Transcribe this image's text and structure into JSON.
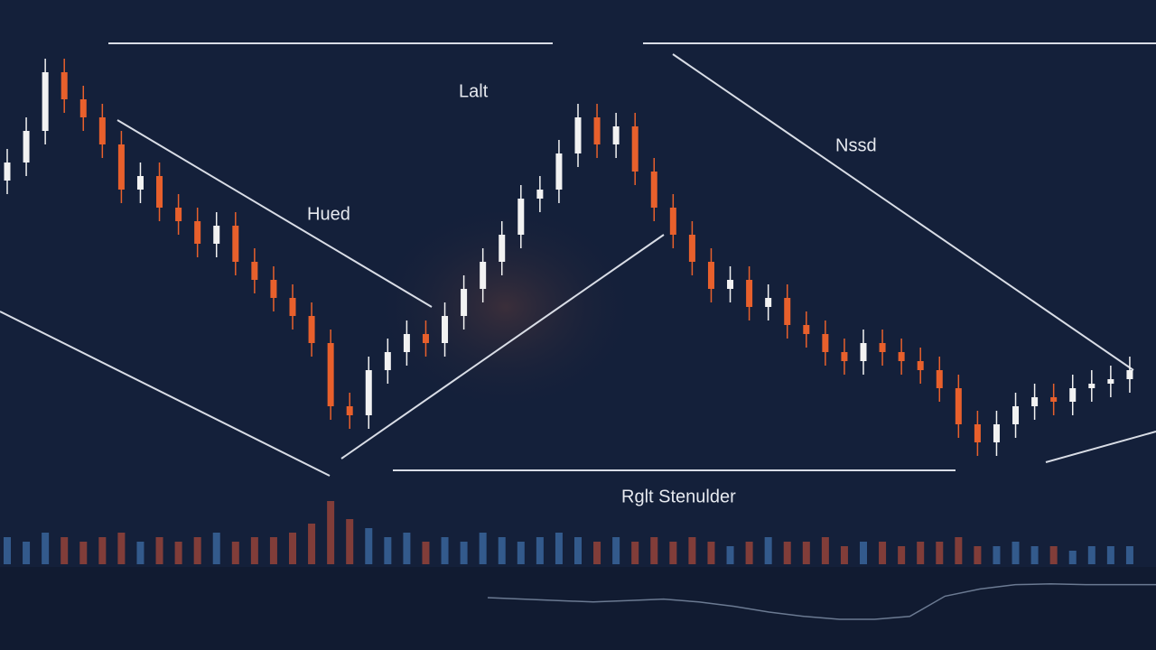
{
  "chart_data": {
    "type": "candlestick",
    "annotations": [
      "Lalt",
      "Hued",
      "Nssd",
      "Rglt Stenulder"
    ],
    "open": [
      64,
      68,
      75,
      88,
      82,
      78,
      72,
      62,
      65,
      58,
      55,
      50,
      54,
      46,
      42,
      38,
      34,
      28,
      14,
      12,
      22,
      26,
      30,
      28,
      34,
      40,
      46,
      52,
      60,
      62,
      70,
      78,
      72,
      76,
      66,
      58,
      52,
      46,
      40,
      42,
      36,
      38,
      32,
      30,
      26,
      24,
      28,
      26,
      24,
      22,
      18,
      10,
      6,
      10,
      14,
      16,
      15,
      18,
      19,
      20
    ],
    "high": [
      71,
      78,
      91,
      91,
      85,
      81,
      75,
      68,
      68,
      61,
      58,
      57,
      57,
      49,
      45,
      41,
      37,
      31,
      17,
      25,
      29,
      33,
      33,
      37,
      43,
      49,
      55,
      63,
      65,
      73,
      81,
      81,
      79,
      79,
      69,
      61,
      55,
      49,
      45,
      45,
      41,
      41,
      35,
      33,
      29,
      31,
      31,
      29,
      27,
      25,
      21,
      13,
      13,
      17,
      19,
      19,
      21,
      22,
      23,
      25
    ],
    "low": [
      61,
      65,
      72,
      79,
      75,
      69,
      59,
      59,
      55,
      52,
      47,
      47,
      43,
      39,
      35,
      31,
      25,
      11,
      9,
      9,
      19,
      23,
      25,
      25,
      31,
      37,
      43,
      49,
      57,
      59,
      67,
      69,
      69,
      63,
      55,
      49,
      43,
      37,
      37,
      33,
      33,
      29,
      27,
      23,
      21,
      21,
      23,
      21,
      19,
      15,
      7,
      3,
      3,
      7,
      11,
      12,
      12,
      15,
      16,
      17
    ],
    "close": [
      68,
      75,
      88,
      82,
      78,
      72,
      62,
      65,
      58,
      55,
      50,
      54,
      46,
      42,
      38,
      34,
      28,
      14,
      12,
      22,
      26,
      30,
      28,
      34,
      40,
      46,
      52,
      60,
      62,
      70,
      78,
      72,
      76,
      66,
      58,
      52,
      46,
      40,
      42,
      36,
      38,
      32,
      30,
      26,
      24,
      28,
      26,
      24,
      22,
      18,
      10,
      6,
      10,
      14,
      16,
      15,
      18,
      19,
      20,
      22
    ],
    "up_color": "#f2f2f2",
    "down_color": "#e8602c",
    "ylim": [
      0,
      100
    ],
    "volume": [
      6,
      5,
      7,
      6,
      5,
      6,
      7,
      5,
      6,
      5,
      6,
      7,
      5,
      6,
      6,
      7,
      9,
      14,
      10,
      8,
      6,
      7,
      5,
      6,
      5,
      7,
      6,
      5,
      6,
      7,
      6,
      5,
      6,
      5,
      6,
      5,
      6,
      5,
      4,
      5,
      6,
      5,
      5,
      6,
      4,
      5,
      5,
      4,
      5,
      5,
      6,
      4,
      4,
      5,
      4,
      4,
      3,
      4,
      4,
      4
    ],
    "volume_up_color": "#3d6ea8",
    "volume_down_color": "#a5473a",
    "indicator": [
      6,
      5.8,
      5.6,
      5.4,
      5.6,
      5.8,
      5.4,
      4.8,
      4,
      3.4,
      3,
      3,
      3.4,
      6.2,
      7.2,
      7.8,
      7.9,
      7.8,
      7.8,
      7.8
    ],
    "indicator_color": "#6b7a92"
  }
}
